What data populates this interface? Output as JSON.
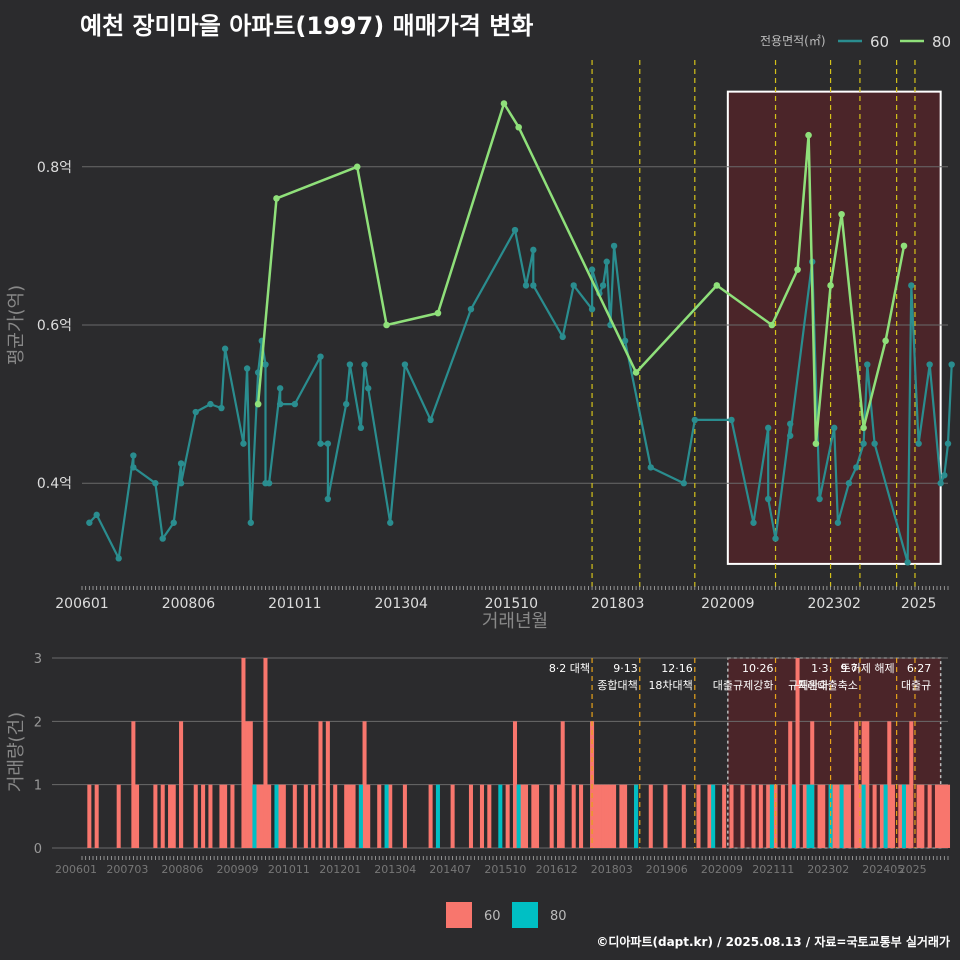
{
  "title": "예천 장미마을 아파트(1997) 매매가격 변화",
  "footer": "©디아파트(dapt.kr) / 2025.08.13 / 자료=국토교통부 실거래가",
  "colors": {
    "s60": "#2a8d8f",
    "s80": "#8fe07a",
    "bar60": "#f8766d",
    "bar80": "#00bfc4",
    "policy": "#d4c21a",
    "bg": "#2b2b2d"
  },
  "chart_data": [
    {
      "type": "line",
      "xlabel": "거래년월",
      "ylabel": "평균가(억)",
      "ylim": [
        0.265,
        0.935
      ],
      "legend": {
        "title": "전용면적(㎡)",
        "position": "top-right",
        "entries": [
          "60",
          "80"
        ]
      },
      "x_ticks": [
        "200601",
        "200806",
        "201011",
        "201304",
        "201510",
        "201803",
        "202009",
        "202302",
        "2025"
      ],
      "y_ticks": [
        "0.4억",
        "0.6억",
        "0.8억"
      ],
      "y_tick_values": [
        0.4,
        0.6,
        0.8
      ],
      "policy_lines_m": [
        139,
        152,
        167,
        189,
        204,
        212,
        222,
        227
      ],
      "highlight_m_range": [
        176,
        234
      ],
      "series": [
        {
          "name": "60",
          "points": [
            [
              2,
              0.35
            ],
            [
              4,
              0.36
            ],
            [
              10,
              0.305
            ],
            [
              14,
              0.435
            ],
            [
              14,
              0.42
            ],
            [
              20,
              0.4
            ],
            [
              22,
              0.33
            ],
            [
              25,
              0.35
            ],
            [
              27,
              0.425
            ],
            [
              27,
              0.4
            ],
            [
              31,
              0.49
            ],
            [
              35,
              0.5
            ],
            [
              38,
              0.495
            ],
            [
              39,
              0.57
            ],
            [
              44,
              0.45
            ],
            [
              45,
              0.545
            ],
            [
              46,
              0.35
            ],
            [
              48,
              0.54
            ],
            [
              49,
              0.58
            ],
            [
              50,
              0.55
            ],
            [
              50,
              0.4
            ],
            [
              51,
              0.4
            ],
            [
              54,
              0.52
            ],
            [
              54,
              0.5
            ],
            [
              58,
              0.5
            ],
            [
              65,
              0.56
            ],
            [
              65,
              0.45
            ],
            [
              67,
              0.45
            ],
            [
              67,
              0.38
            ],
            [
              72,
              0.5
            ],
            [
              73,
              0.55
            ],
            [
              76,
              0.47
            ],
            [
              77,
              0.55
            ],
            [
              78,
              0.52
            ],
            [
              84,
              0.35
            ],
            [
              88,
              0.55
            ],
            [
              95,
              0.48
            ],
            [
              106,
              0.62
            ],
            [
              118,
              0.72
            ],
            [
              121,
              0.65
            ],
            [
              123,
              0.695
            ],
            [
              123,
              0.65
            ],
            [
              131,
              0.585
            ],
            [
              134,
              0.65
            ],
            [
              139,
              0.62
            ],
            [
              139,
              0.67
            ],
            [
              141,
              0.64
            ],
            [
              142,
              0.65
            ],
            [
              143,
              0.68
            ],
            [
              144,
              0.6
            ],
            [
              145,
              0.7
            ],
            [
              148,
              0.58
            ],
            [
              155,
              0.42
            ],
            [
              164,
              0.4
            ],
            [
              167,
              0.48
            ],
            [
              177,
              0.48
            ],
            [
              183,
              0.35
            ],
            [
              187,
              0.47
            ],
            [
              187,
              0.38
            ],
            [
              189,
              0.33
            ],
            [
              193,
              0.475
            ],
            [
              193,
              0.46
            ],
            [
              199,
              0.68
            ],
            [
              201,
              0.38
            ],
            [
              205,
              0.47
            ],
            [
              206,
              0.35
            ],
            [
              209,
              0.4
            ],
            [
              211,
              0.42
            ],
            [
              213,
              0.45
            ],
            [
              214,
              0.55
            ],
            [
              216,
              0.45
            ],
            [
              225,
              0.3
            ],
            [
              226,
              0.65
            ],
            [
              228,
              0.45
            ],
            [
              231,
              0.55
            ],
            [
              234,
              0.4
            ],
            [
              235,
              0.41
            ],
            [
              236,
              0.45
            ],
            [
              237,
              0.55
            ]
          ]
        },
        {
          "name": "80",
          "points": [
            [
              48,
              0.5
            ],
            [
              53,
              0.76
            ],
            [
              75,
              0.8
            ],
            [
              83,
              0.6
            ],
            [
              97,
              0.615
            ],
            [
              115,
              0.88
            ],
            [
              119,
              0.85
            ],
            [
              151,
              0.54
            ],
            [
              173,
              0.65
            ],
            [
              188,
              0.6
            ],
            [
              195,
              0.67
            ],
            [
              198,
              0.84
            ],
            [
              200,
              0.45
            ],
            [
              204,
              0.65
            ],
            [
              207,
              0.74
            ],
            [
              213,
              0.47
            ],
            [
              219,
              0.58
            ],
            [
              224,
              0.7
            ]
          ]
        }
      ]
    },
    {
      "type": "bar",
      "xlabel": "",
      "ylabel": "거래량(건)",
      "ylim": [
        0,
        3
      ],
      "y_ticks": [
        "0",
        "1",
        "2",
        "3"
      ],
      "x_ticks": [
        "200601",
        "200703",
        "200806",
        "200909",
        "201011",
        "201201",
        "201304",
        "201407",
        "201510",
        "201612",
        "201803",
        "201906",
        "202009",
        "202111",
        "202302",
        "202405",
        "2025"
      ],
      "policy_labels": [
        {
          "m": 139,
          "text": "8·2 대책"
        },
        {
          "m": 152,
          "text": "9·13"
        },
        {
          "m": 152,
          "text": "종합대책"
        },
        {
          "m": 167,
          "text": "12·16"
        },
        {
          "m": 167,
          "text": "18차대책"
        },
        {
          "m": 189,
          "text": "10·26"
        },
        {
          "m": 189,
          "text": "대출규제강화"
        },
        {
          "m": 204,
          "text": "1·3"
        },
        {
          "m": 204,
          "text": "규제완화"
        },
        {
          "m": 212,
          "text": "9·7"
        },
        {
          "m": 212,
          "text": "특례대출축소"
        },
        {
          "m": 222,
          "text": "토허제 해제"
        },
        {
          "m": 232,
          "text": "6·27"
        },
        {
          "m": 232,
          "text": "대출규"
        }
      ],
      "series": [
        {
          "name": "60",
          "bars": [
            [
              2,
              1
            ],
            [
              4,
              1
            ],
            [
              10,
              1
            ],
            [
              14,
              2
            ],
            [
              15,
              1
            ],
            [
              20,
              1
            ],
            [
              22,
              1
            ],
            [
              24,
              1
            ],
            [
              25,
              1
            ],
            [
              27,
              1
            ],
            [
              27,
              2
            ],
            [
              31,
              1
            ],
            [
              33,
              1
            ],
            [
              35,
              1
            ],
            [
              38,
              1
            ],
            [
              39,
              1
            ],
            [
              41,
              1
            ],
            [
              44,
              3
            ],
            [
              45,
              2
            ],
            [
              46,
              2
            ],
            [
              48,
              1
            ],
            [
              49,
              1
            ],
            [
              50,
              3
            ],
            [
              51,
              1
            ],
            [
              54,
              1
            ],
            [
              55,
              1
            ],
            [
              58,
              1
            ],
            [
              61,
              1
            ],
            [
              63,
              1
            ],
            [
              65,
              2
            ],
            [
              67,
              2
            ],
            [
              69,
              1
            ],
            [
              72,
              1
            ],
            [
              73,
              1
            ],
            [
              74,
              1
            ],
            [
              76,
              1
            ],
            [
              77,
              2
            ],
            [
              78,
              1
            ],
            [
              81,
              1
            ],
            [
              84,
              1
            ],
            [
              88,
              1
            ],
            [
              95,
              1
            ],
            [
              101,
              1
            ],
            [
              106,
              1
            ],
            [
              109,
              1
            ],
            [
              111,
              1
            ],
            [
              116,
              1
            ],
            [
              118,
              2
            ],
            [
              120,
              1
            ],
            [
              121,
              1
            ],
            [
              123,
              1
            ],
            [
              124,
              1
            ],
            [
              128,
              1
            ],
            [
              130,
              1
            ],
            [
              131,
              2
            ],
            [
              134,
              1
            ],
            [
              136,
              1
            ],
            [
              139,
              2
            ],
            [
              140,
              1
            ],
            [
              141,
              1
            ],
            [
              142,
              1
            ],
            [
              143,
              1
            ],
            [
              144,
              1
            ],
            [
              145,
              1
            ],
            [
              147,
              1
            ],
            [
              148,
              1
            ],
            [
              151,
              1
            ],
            [
              155,
              1
            ],
            [
              159,
              1
            ],
            [
              164,
              1
            ],
            [
              168,
              1
            ],
            [
              171,
              1
            ],
            [
              175,
              1
            ],
            [
              177,
              1
            ],
            [
              180,
              1
            ],
            [
              183,
              1
            ],
            [
              185,
              1
            ],
            [
              187,
              1
            ],
            [
              189,
              1
            ],
            [
              191,
              1
            ],
            [
              193,
              2
            ],
            [
              195,
              3
            ],
            [
              197,
              1
            ],
            [
              198,
              1
            ],
            [
              199,
              2
            ],
            [
              201,
              1
            ],
            [
              202,
              1
            ],
            [
              205,
              1
            ],
            [
              206,
              1
            ],
            [
              208,
              1
            ],
            [
              209,
              1
            ],
            [
              211,
              2
            ],
            [
              212,
              1
            ],
            [
              213,
              2
            ],
            [
              214,
              2
            ],
            [
              216,
              1
            ],
            [
              218,
              1
            ],
            [
              219,
              1
            ],
            [
              220,
              2
            ],
            [
              221,
              1
            ],
            [
              223,
              1
            ],
            [
              225,
              1
            ],
            [
              226,
              2
            ],
            [
              228,
              1
            ],
            [
              229,
              1
            ],
            [
              231,
              1
            ],
            [
              233,
              1
            ],
            [
              234,
              1
            ],
            [
              235,
              1
            ],
            [
              236,
              1
            ]
          ]
        },
        {
          "name": "80",
          "bars": [
            [
              47,
              1
            ],
            [
              53,
              1
            ],
            [
              76,
              1
            ],
            [
              83,
              1
            ],
            [
              97,
              1
            ],
            [
              114,
              1
            ],
            [
              119,
              1
            ],
            [
              151,
              1
            ],
            [
              172,
              1
            ],
            [
              188,
              1
            ],
            [
              194,
              1
            ],
            [
              198,
              1
            ],
            [
              199,
              1
            ],
            [
              204,
              1
            ],
            [
              207,
              1
            ],
            [
              213,
              1
            ],
            [
              219,
              1
            ],
            [
              224,
              1
            ]
          ]
        }
      ]
    }
  ]
}
